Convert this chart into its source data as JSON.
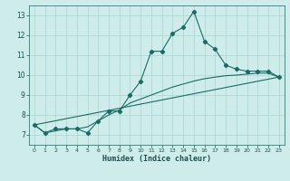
{
  "xlabel": "Humidex (Indice chaleur)",
  "ylabel": "",
  "xlim": [
    -0.5,
    23.5
  ],
  "ylim": [
    6.5,
    13.5
  ],
  "xticks": [
    0,
    1,
    2,
    3,
    4,
    5,
    6,
    7,
    8,
    9,
    10,
    11,
    12,
    13,
    14,
    15,
    16,
    17,
    18,
    19,
    20,
    21,
    22,
    23
  ],
  "yticks": [
    7,
    8,
    9,
    10,
    11,
    12,
    13
  ],
  "bg_color": "#ceecea",
  "grid_color": "#a8d5d2",
  "line_color": "#1a6b64",
  "main_x": [
    0,
    1,
    2,
    3,
    4,
    5,
    6,
    7,
    8,
    9,
    10,
    11,
    12,
    13,
    14,
    15,
    16,
    17,
    18,
    19,
    20,
    21,
    22,
    23
  ],
  "main_y": [
    7.5,
    7.1,
    7.3,
    7.3,
    7.3,
    7.1,
    7.7,
    8.2,
    8.2,
    9.0,
    9.7,
    11.2,
    11.2,
    12.1,
    12.4,
    13.2,
    11.7,
    11.3,
    10.5,
    10.3,
    10.2,
    10.2,
    10.2,
    9.9
  ],
  "line1_x": [
    0,
    1,
    2,
    3,
    4,
    5,
    6,
    7,
    8,
    9,
    10,
    11,
    12,
    13,
    14,
    15,
    16,
    17,
    18,
    19,
    20,
    21,
    22,
    23
  ],
  "line1_y": [
    7.5,
    7.1,
    7.2,
    7.3,
    7.3,
    7.4,
    7.7,
    8.0,
    8.25,
    8.6,
    8.8,
    9.0,
    9.2,
    9.4,
    9.55,
    9.7,
    9.82,
    9.9,
    9.97,
    10.0,
    10.05,
    10.1,
    10.1,
    9.9
  ],
  "line2_x": [
    0,
    23
  ],
  "line2_y": [
    7.5,
    9.9
  ],
  "marker": "D",
  "marker_size": 2.2,
  "line_width": 0.8
}
